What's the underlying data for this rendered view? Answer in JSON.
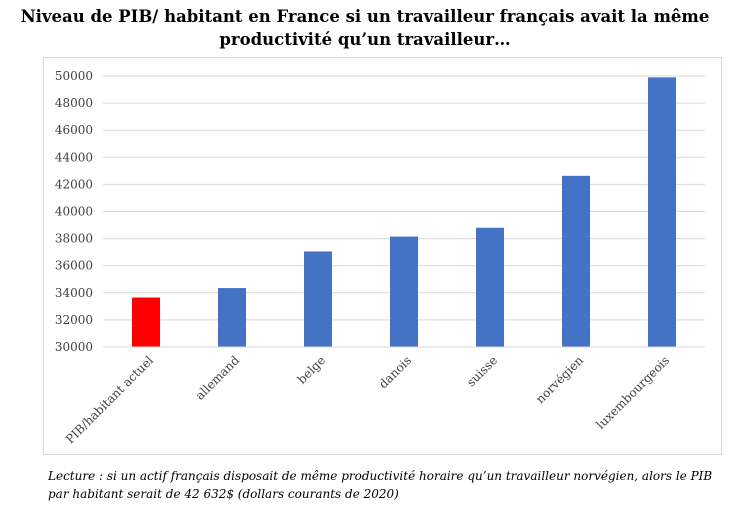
{
  "title_line1": "Niveau de PIB/ habitant en France si un travailleur français avait la même",
  "title_line2": "productivité qu’un travailleur…",
  "caption_line1": "Lecture : si un actif français disposait de même productivité horaire qu’un travailleur norvégien, alors le PIB",
  "caption_line2": "par habitant serait de 42 632$ (dollars courants de 2020)",
  "chart_data": {
    "type": "bar",
    "title": "Niveau de PIB/ habitant en France si un travailleur français avait la même productivité qu’un travailleur…",
    "categories": [
      "PIB/habitant actuel",
      "allemand",
      "belge",
      "danois",
      "suisse",
      "norvégien",
      "luxembourgeois"
    ],
    "values": [
      33650,
      34350,
      37050,
      38150,
      38800,
      42632,
      49900
    ],
    "bar_colors": [
      "#ff0000",
      "#4472c4",
      "#4472c4",
      "#4472c4",
      "#4472c4",
      "#4472c4",
      "#4472c4"
    ],
    "ylim": [
      30000,
      50000
    ],
    "yticks": [
      "30000",
      "32000",
      "34000",
      "36000",
      "38000",
      "40000",
      "42000",
      "44000",
      "46000",
      "48000",
      "50000"
    ],
    "xlabel": "",
    "ylabel": "",
    "grid": true
  }
}
